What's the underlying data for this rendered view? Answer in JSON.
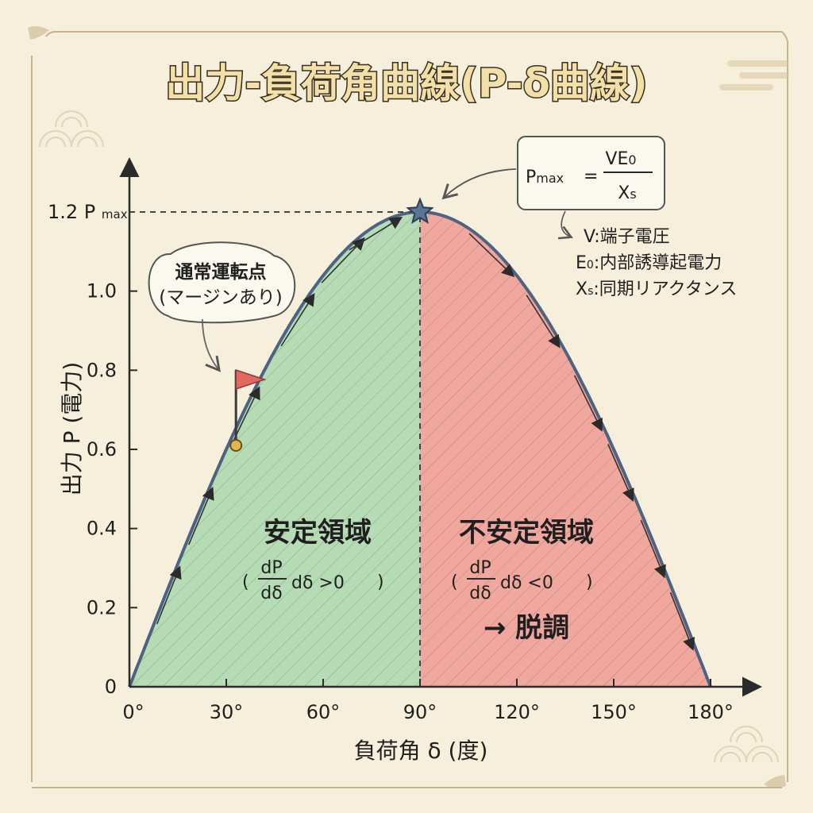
{
  "title": "出力-負荷角曲線(P-δ曲線)",
  "chart_data": {
    "type": "area",
    "xlabel": "負荷角 δ (度)",
    "ylabel": "出力 P (電力)",
    "xlim": [
      0,
      180
    ],
    "ylim": [
      0,
      1.2
    ],
    "x_ticks": [
      0,
      30,
      60,
      90,
      120,
      150,
      180
    ],
    "x_tick_labels": [
      "0°",
      "30°",
      "60°",
      "90°",
      "120°",
      "150°",
      "180°"
    ],
    "y_ticks": [
      0,
      0.2,
      0.4,
      0.6,
      0.8,
      1.0
    ],
    "y_tick_labels": [
      "0",
      "0.2",
      "0.4",
      "0.6",
      "0.8",
      "1.0"
    ],
    "ymax_label": "1.2 Pmax",
    "ymax_label_main": "1.2 P",
    "ymax_label_sub": "max",
    "curve": {
      "description_formula": "P = 1.2 sin δ",
      "peak": {
        "x": 90,
        "y": 1.2
      },
      "x": [
        0,
        15,
        30,
        45,
        60,
        75,
        90,
        105,
        120,
        135,
        150,
        165,
        180
      ],
      "y": [
        0,
        0.31,
        0.6,
        0.85,
        1.04,
        1.16,
        1.2,
        1.16,
        1.04,
        0.85,
        0.6,
        0.31,
        0
      ]
    },
    "regions": [
      {
        "name": "安定領域",
        "x_from": 0,
        "x_to": 90,
        "color": "#a9d8ad",
        "condition_num": "dP",
        "condition_den": "dδ",
        "condition_rest": "dδ >0"
      },
      {
        "name": "不安定領域",
        "x_from": 90,
        "x_to": 180,
        "color": "#ee9a92",
        "condition_num": "dP",
        "condition_den": "dδ",
        "condition_rest": "dδ <0",
        "note": "→ 脱調"
      }
    ],
    "operating_point": {
      "x": 33,
      "y": 0.61,
      "label_line1": "通常運転点",
      "label_line2": "(マージンあり)"
    },
    "formula": {
      "lhs_main": "P",
      "lhs_sub": "max",
      "equals": "=",
      "numerator": "VE",
      "numerator_sub": "0",
      "denominator": "X",
      "denominator_sub": "s"
    },
    "legend": [
      {
        "sym": "V",
        "sub": "",
        "desc": "端子電圧"
      },
      {
        "sym": "E",
        "sub": "0",
        "desc": "内部誘導起電力"
      },
      {
        "sym": "X",
        "sub": "s",
        "desc": "同期リアクタンス"
      }
    ],
    "colors": {
      "curve": "#4d6382",
      "stable_fill": "#a9d8ad",
      "unstable_fill": "#ee9a92",
      "star": "#5b7596",
      "flag": "#e0685e"
    }
  }
}
